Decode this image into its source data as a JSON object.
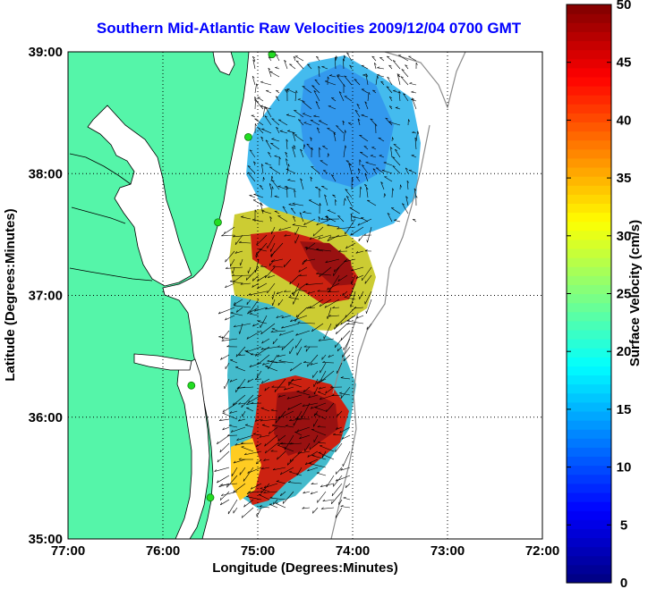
{
  "title": "Southern Mid-Atlantic Raw Velocities 2009/12/04 0700 GMT",
  "colors": {
    "land": "#55f5a9",
    "coast_line": "#000000",
    "bathymetry": "#8c8c8c",
    "station_green": "#22dd22",
    "station_red": "#ff2222",
    "grid": "#000000"
  },
  "map": {
    "xlabel": "Longitude (Degrees:Minutes)",
    "ylabel": "Latitude (Degrees:Minutes)",
    "lon_range": [
      -77,
      -72
    ],
    "lat_range": [
      35,
      39
    ],
    "x_ticks": [
      {
        "value": -77,
        "label": "77:00"
      },
      {
        "value": -76,
        "label": "76:00"
      },
      {
        "value": -75,
        "label": "75:00"
      },
      {
        "value": -74,
        "label": "74:00"
      },
      {
        "value": -73,
        "label": "73:00"
      },
      {
        "value": -72,
        "label": "72:00"
      }
    ],
    "y_ticks": [
      {
        "value": 39,
        "label": "39:00"
      },
      {
        "value": 38,
        "label": "38:00"
      },
      {
        "value": 37,
        "label": "37:00"
      },
      {
        "value": 36,
        "label": "36:00"
      },
      {
        "value": 35,
        "label": "35:00"
      }
    ],
    "grid": "dotted",
    "stations": [
      {
        "lon": -74.85,
        "lat": 38.98,
        "type": "green"
      },
      {
        "lon": -75.1,
        "lat": 38.3,
        "type": "green"
      },
      {
        "lon": -75.42,
        "lat": 37.6,
        "type": "green"
      },
      {
        "lon": -75.7,
        "lat": 36.26,
        "type": "green"
      },
      {
        "lon": -75.5,
        "lat": 35.34,
        "type": "green"
      }
    ]
  },
  "colorbar": {
    "label": "Surface Velocity (cm/s)",
    "min": 0,
    "max": 50,
    "colormap": "jet",
    "ticks": [
      "0",
      "5",
      "10",
      "15",
      "20",
      "25",
      "30",
      "35",
      "40",
      "45",
      "50"
    ]
  }
}
